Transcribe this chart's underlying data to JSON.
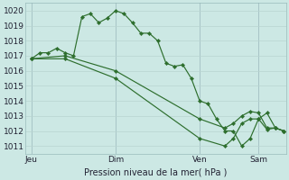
{
  "background_color": "#cce8e4",
  "grid_color": "#b8d4d0",
  "line_color": "#2d6e2d",
  "marker_color": "#2d6e2d",
  "xlabel": "Pression niveau de la mer( hPa )",
  "ylim": [
    1010.5,
    1020.5
  ],
  "xlim": [
    -3,
    121
  ],
  "xtick_labels": [
    "Jeu",
    "Dim",
    "Ven",
    "Sam"
  ],
  "xtick_positions": [
    0,
    40,
    80,
    108
  ],
  "vline_positions": [
    0,
    40,
    80,
    108
  ],
  "line1_x": [
    0,
    4,
    8,
    12,
    16,
    20,
    24,
    28,
    32,
    36,
    40,
    44,
    48,
    52,
    56,
    60,
    64,
    68,
    72,
    76,
    80,
    84,
    88,
    92,
    96,
    100,
    104,
    108,
    112,
    116,
    120
  ],
  "line1": [
    1016.8,
    1017.2,
    1017.2,
    1017.5,
    1017.2,
    1017.0,
    1019.6,
    1019.8,
    1019.2,
    1019.5,
    1020.0,
    1019.8,
    1019.2,
    1018.5,
    1018.5,
    1018.0,
    1016.5,
    1016.3,
    1016.4,
    1015.5,
    1014.0,
    1013.8,
    1012.8,
    1012.0,
    1012.0,
    1011.0,
    1011.5,
    1012.8,
    1013.2,
    1012.2,
    1012.0
  ],
  "line2_x": [
    0,
    16,
    40,
    80,
    92,
    96,
    100,
    104,
    108,
    112,
    116,
    120
  ],
  "line2": [
    1016.8,
    1017.0,
    1016.0,
    1012.8,
    1012.2,
    1012.5,
    1013.0,
    1013.3,
    1013.2,
    1012.2,
    1012.2,
    1012.0
  ],
  "line3_x": [
    0,
    16,
    40,
    80,
    92,
    96,
    100,
    104,
    108,
    112,
    116,
    120
  ],
  "line3": [
    1016.8,
    1016.8,
    1015.5,
    1011.5,
    1011.0,
    1011.5,
    1012.5,
    1012.8,
    1012.8,
    1012.1,
    1012.2,
    1012.0
  ]
}
